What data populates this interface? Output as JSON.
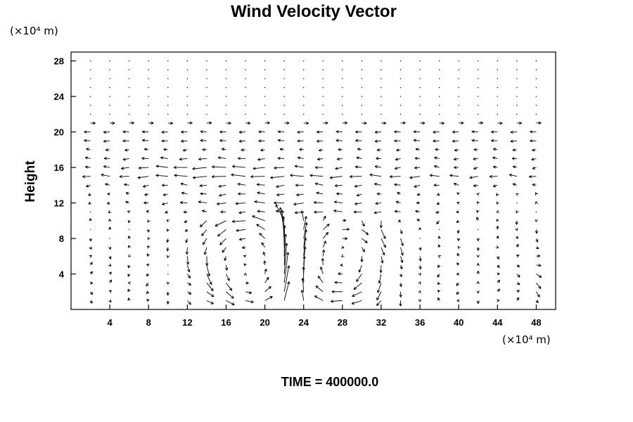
{
  "chart_data": {
    "type": "quiver",
    "title": "Wind Velocity Vector",
    "ylabel": "Height",
    "x_unit_label": "(×10⁴ m)",
    "y_unit_label": "(×10⁴ m)",
    "time_label": "TIME = 400000.0",
    "xlim": [
      0,
      50
    ],
    "ylim": [
      0,
      29
    ],
    "x_ticks": [
      4,
      8,
      12,
      16,
      20,
      24,
      28,
      32,
      36,
      40,
      44,
      48
    ],
    "y_ticks": [
      4,
      8,
      12,
      16,
      20,
      24,
      28
    ],
    "grid": false,
    "vector_grid": {
      "x_start": 2,
      "x_step": 2,
      "x_end": 49,
      "y_start": 1,
      "y_step": 1,
      "y_end": 28
    },
    "vector_color": "#000000"
  }
}
